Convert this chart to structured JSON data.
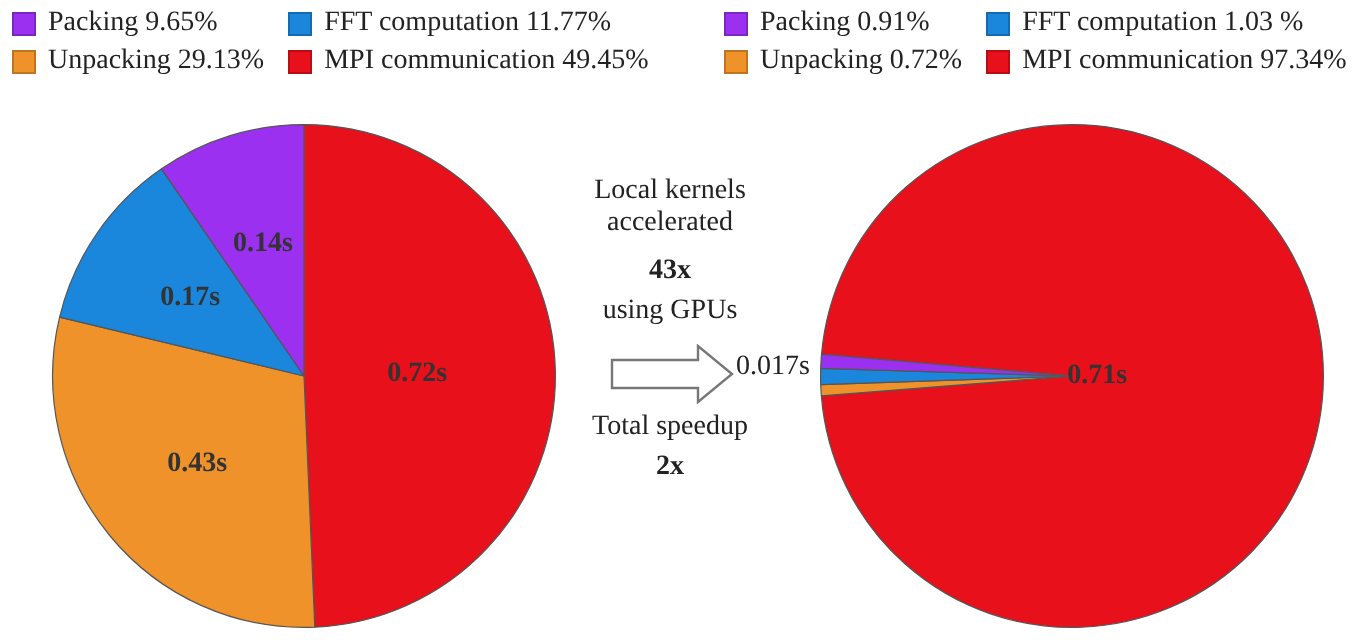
{
  "chart_data": [
    {
      "type": "pie",
      "categories": [
        "Packing 9.65%",
        "FFT computation 11.77%",
        "Unpacking 29.13%",
        "MPI communication 49.45%"
      ],
      "values": [
        0.14,
        0.17,
        0.43,
        0.72
      ],
      "colors": [
        "#9b30f0",
        "#1a86dc",
        "#f0922a",
        "#e8101a"
      ],
      "value_labels": [
        "0.14s",
        "0.17s",
        "0.43s",
        "0.72s"
      ],
      "legend": "top"
    },
    {
      "type": "other",
      "annotations": [
        "Local kernels accelerated",
        "43x",
        "using GPUs",
        "Total speedup",
        "2x"
      ]
    },
    {
      "type": "pie",
      "categories": [
        "Packing 0.91%",
        "FFT computation 1.03 %",
        "Unpacking 0.72%",
        "MPI communication 97.34%"
      ],
      "values": [
        0.0066,
        0.0075,
        0.0052,
        0.71
      ],
      "colors": [
        "#9b30f0",
        "#1a86dc",
        "#f0922a",
        "#e8101a"
      ],
      "value_labels": [
        null,
        null,
        null,
        "0.71s"
      ],
      "legend": "top",
      "annotations": [
        "0.017s"
      ]
    }
  ]
}
